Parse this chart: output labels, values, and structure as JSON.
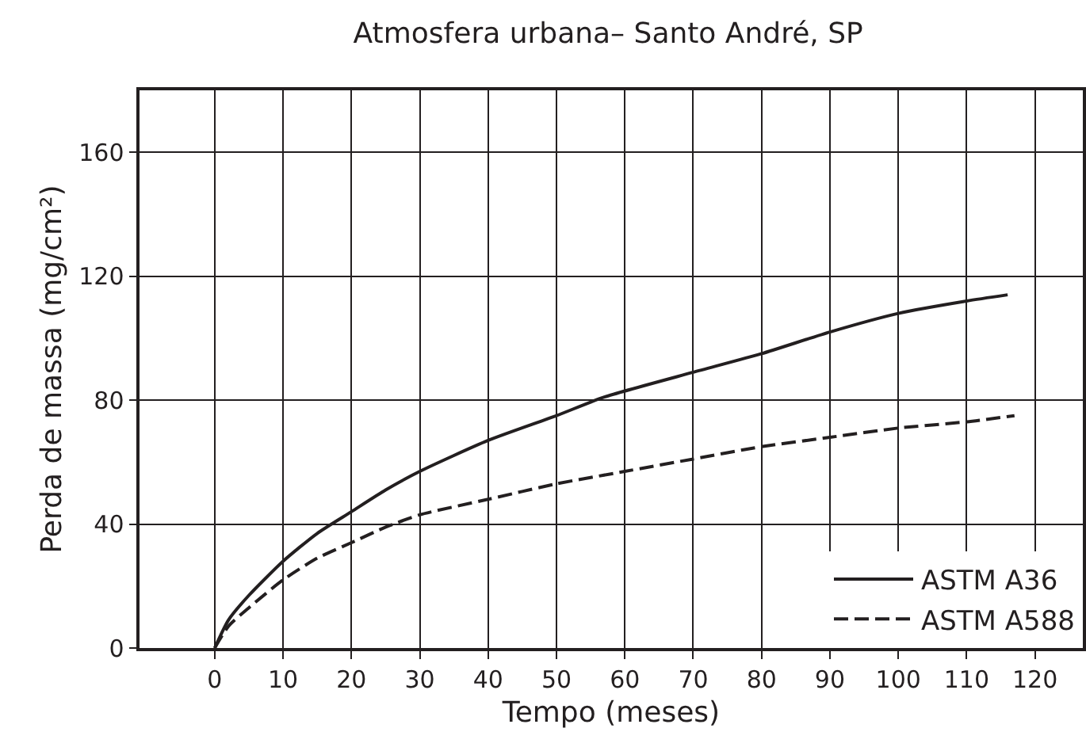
{
  "chart_data": {
    "type": "line",
    "title": "Atmosfera urbana– Santo André, SP",
    "xlabel": "Tempo (meses)",
    "ylabel": "Perda de massa (mg/cm²)",
    "xlim": [
      -11,
      127
    ],
    "xticks": [
      0,
      10,
      20,
      30,
      40,
      50,
      60,
      70,
      80,
      90,
      100,
      110,
      120
    ],
    "ylim": [
      0,
      180
    ],
    "yticks": [
      0,
      40,
      80,
      120,
      160
    ],
    "grid": true,
    "legend": "bottom right",
    "marker": "none",
    "series": [
      {
        "name": "ASTM A36",
        "color": "#231f20",
        "line_style": "solid",
        "x": [
          0,
          2,
          5,
          10,
          15,
          20,
          25,
          30,
          40,
          50,
          57,
          70,
          80,
          90,
          100,
          110,
          116
        ],
        "values": [
          0,
          9,
          17,
          28,
          37,
          44,
          51,
          57,
          67,
          75,
          81,
          89,
          95,
          102,
          108,
          112,
          114
        ]
      },
      {
        "name": "ASTM A588",
        "color": "#231f20",
        "line_style": "dashed",
        "x": [
          0,
          2,
          5,
          10,
          15,
          20,
          25,
          30,
          40,
          50,
          60,
          70,
          80,
          90,
          100,
          110,
          117
        ],
        "values": [
          0,
          7,
          13,
          22,
          29,
          34,
          39,
          43,
          48,
          53,
          57,
          61,
          65,
          68,
          71,
          73,
          75
        ]
      }
    ]
  }
}
